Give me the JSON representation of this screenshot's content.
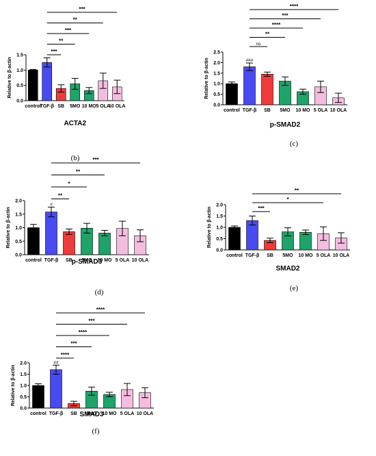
{
  "colors": {
    "control": "#000000",
    "tgf": "#4a4af2",
    "sb": "#ef3b3b",
    "mo": "#1ea36a",
    "ola": "#f4bde0"
  },
  "chart_data": [
    {
      "type": "bar",
      "panel_label": "(b)",
      "title": "ACTA2",
      "ylabel": "Relative to β-actin",
      "ylim": [
        0,
        1.5
      ],
      "yticks": [
        "0.0",
        "0.5",
        "1.0",
        "1.5"
      ],
      "categories": [
        "control",
        "TGF-β",
        "SB",
        "5MO",
        "10 MO",
        "5 OLA",
        "10 OLA"
      ],
      "values": [
        1.0,
        1.25,
        0.4,
        0.55,
        0.33,
        0.65,
        0.45
      ],
      "errors": [
        0.02,
        0.15,
        0.12,
        0.18,
        0.1,
        0.25,
        0.22
      ],
      "bar_annotations": [],
      "comparisons": [
        {
          "from": "TGF-β",
          "to": "SB",
          "label": "***"
        },
        {
          "from": "TGF-β",
          "to": "5MO",
          "label": "**"
        },
        {
          "from": "TGF-β",
          "to": "10 MO",
          "label": "***"
        },
        {
          "from": "TGF-β",
          "to": "5 OLA",
          "label": "**"
        },
        {
          "from": "TGF-β",
          "to": "10 OLA",
          "label": "***"
        }
      ]
    },
    {
      "type": "bar",
      "panel_label": "(c)",
      "title": "p-SMAD2",
      "ylabel": "Relative to β-actin",
      "ylim": [
        0,
        2.5
      ],
      "yticks": [
        "0.0",
        "0.5",
        "1.0",
        "1.5",
        "2.0",
        "2.5"
      ],
      "categories": [
        "control",
        "TGF-β",
        "SB",
        "5MO",
        "10 MO",
        "5 OLA",
        "10 OLA"
      ],
      "values": [
        1.0,
        1.8,
        1.45,
        1.12,
        0.62,
        0.85,
        0.33
      ],
      "errors": [
        0.08,
        0.18,
        0.1,
        0.2,
        0.12,
        0.27,
        0.22
      ],
      "bar_annotations": [
        {
          "category": "TGF-β",
          "label": "###"
        }
      ],
      "comparisons": [
        {
          "from": "TGF-β",
          "to": "SB",
          "label": "ns"
        },
        {
          "from": "TGF-β",
          "to": "5MO",
          "label": "**"
        },
        {
          "from": "TGF-β",
          "to": "10 MO",
          "label": "****"
        },
        {
          "from": "TGF-β",
          "to": "5 OLA",
          "label": "***"
        },
        {
          "from": "TGF-β",
          "to": "10 OLA",
          "label": "****"
        }
      ]
    },
    {
      "type": "bar",
      "panel_label": "(d)",
      "title": "p-SMAD3",
      "ylabel": "Relative to β-actin",
      "ylim": [
        0,
        2.0
      ],
      "yticks": [
        "0.0",
        "0.5",
        "1.0",
        "1.5",
        "2.0"
      ],
      "categories": [
        "control",
        "TGF-β",
        "SB",
        "5MO",
        "10 MO",
        "5 OLA",
        "10 OLA"
      ],
      "values": [
        1.0,
        1.58,
        0.85,
        0.98,
        0.8,
        0.97,
        0.7
      ],
      "errors": [
        0.12,
        0.18,
        0.1,
        0.18,
        0.1,
        0.27,
        0.22
      ],
      "bar_annotations": [
        {
          "category": "TGF-β",
          "label": "#"
        }
      ],
      "comparisons": [
        {
          "from": "TGF-β",
          "to": "SB",
          "label": "**"
        },
        {
          "from": "TGF-β",
          "to": "5MO",
          "label": "*"
        },
        {
          "from": "TGF-β",
          "to": "10 MO",
          "label": "**"
        },
        {
          "from": "TGF-β",
          "to": "10 OLA",
          "label": "***"
        }
      ]
    },
    {
      "type": "bar",
      "panel_label": "(e)",
      "title": "SMAD2",
      "ylabel": "Relative to β-actin",
      "ylim": [
        0,
        2.0
      ],
      "yticks": [
        "0.0",
        "0.5",
        "1.0",
        "1.5",
        "2.0"
      ],
      "categories": [
        "control",
        "TGF-β",
        "SB",
        "5MO",
        "10 MO",
        "5 OLA",
        "10 OLA"
      ],
      "values": [
        1.0,
        1.3,
        0.42,
        0.8,
        0.78,
        0.72,
        0.53
      ],
      "errors": [
        0.06,
        0.2,
        0.1,
        0.18,
        0.1,
        0.3,
        0.23
      ],
      "bar_annotations": [],
      "comparisons": [
        {
          "from": "TGF-β",
          "to": "SB",
          "label": "***"
        },
        {
          "from": "TGF-β",
          "to": "5 OLA",
          "label": "*"
        },
        {
          "from": "TGF-β",
          "to": "10 OLA",
          "label": "**"
        }
      ]
    },
    {
      "type": "bar",
      "panel_label": "(f)",
      "title": "SMAD3",
      "ylabel": "Relative to β-actin",
      "ylim": [
        0,
        2.0
      ],
      "yticks": [
        "0.0",
        "0.5",
        "1.0",
        "1.5",
        "2.0"
      ],
      "categories": [
        "control",
        "TGF-β",
        "SB",
        "5MO",
        "10 MO",
        "5 OLA",
        "10 OLA"
      ],
      "values": [
        1.0,
        1.7,
        0.2,
        0.75,
        0.6,
        0.82,
        0.68
      ],
      "errors": [
        0.08,
        0.2,
        0.1,
        0.18,
        0.1,
        0.27,
        0.22
      ],
      "bar_annotations": [
        {
          "category": "TGF-β",
          "label": "##"
        }
      ],
      "comparisons": [
        {
          "from": "TGF-β",
          "to": "SB",
          "label": "****"
        },
        {
          "from": "TGF-β",
          "to": "5MO",
          "label": "***"
        },
        {
          "from": "TGF-β",
          "to": "10 MO",
          "label": "****"
        },
        {
          "from": "TGF-β",
          "to": "5 OLA",
          "label": "***"
        },
        {
          "from": "TGF-β",
          "to": "10 OLA",
          "label": "****"
        }
      ]
    }
  ]
}
